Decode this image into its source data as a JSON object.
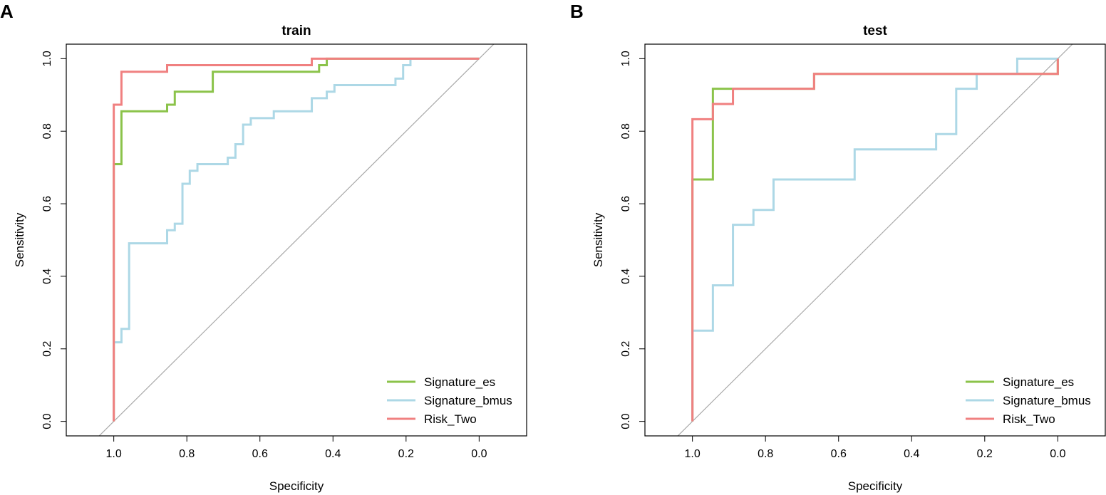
{
  "chart_data": [
    {
      "type": "line",
      "panel_label": "A",
      "title": "train",
      "xlabel": "Specificity",
      "ylabel": "Sensitivity",
      "xlim": [
        1.13,
        -0.13
      ],
      "ylim": [
        -0.04,
        1.04
      ],
      "x_reversed": true,
      "x_ticks": [
        1.0,
        0.8,
        0.6,
        0.4,
        0.2,
        0.0
      ],
      "x_tick_labels": [
        "1.0",
        "0.8",
        "0.6",
        "0.4",
        "0.2",
        "0.0"
      ],
      "y_ticks": [
        0.0,
        0.2,
        0.4,
        0.6,
        0.8,
        1.0
      ],
      "y_tick_labels": [
        "0.0",
        "0.2",
        "0.4",
        "0.6",
        "0.8",
        "1.0"
      ],
      "diagonal": {
        "color": "#A9A9A9",
        "description": "reference line"
      },
      "legend": {
        "position": "bottom-right",
        "entries": [
          "Signature_es",
          "Signature_bmus",
          "Risk_Two"
        ]
      },
      "series": [
        {
          "name": "Signature_es",
          "color": "#8BC34A",
          "points": [
            [
              1.0,
              0.0
            ],
            [
              1.0,
              0.709
            ],
            [
              0.979,
              0.709
            ],
            [
              0.979,
              0.855
            ],
            [
              0.854,
              0.855
            ],
            [
              0.854,
              0.873
            ],
            [
              0.833,
              0.873
            ],
            [
              0.833,
              0.909
            ],
            [
              0.729,
              0.909
            ],
            [
              0.729,
              0.964
            ],
            [
              0.438,
              0.964
            ],
            [
              0.438,
              0.982
            ],
            [
              0.417,
              0.982
            ],
            [
              0.417,
              1.0
            ],
            [
              0.0,
              1.0
            ]
          ]
        },
        {
          "name": "Signature_bmus",
          "color": "#ADD8E6",
          "points": [
            [
              1.0,
              0.0
            ],
            [
              1.0,
              0.218
            ],
            [
              0.979,
              0.218
            ],
            [
              0.979,
              0.255
            ],
            [
              0.958,
              0.255
            ],
            [
              0.958,
              0.491
            ],
            [
              0.854,
              0.491
            ],
            [
              0.854,
              0.527
            ],
            [
              0.833,
              0.527
            ],
            [
              0.833,
              0.545
            ],
            [
              0.812,
              0.545
            ],
            [
              0.812,
              0.655
            ],
            [
              0.792,
              0.655
            ],
            [
              0.792,
              0.691
            ],
            [
              0.771,
              0.691
            ],
            [
              0.771,
              0.709
            ],
            [
              0.688,
              0.709
            ],
            [
              0.688,
              0.727
            ],
            [
              0.667,
              0.727
            ],
            [
              0.667,
              0.764
            ],
            [
              0.646,
              0.764
            ],
            [
              0.646,
              0.818
            ],
            [
              0.625,
              0.818
            ],
            [
              0.625,
              0.836
            ],
            [
              0.562,
              0.836
            ],
            [
              0.562,
              0.855
            ],
            [
              0.458,
              0.855
            ],
            [
              0.458,
              0.891
            ],
            [
              0.417,
              0.891
            ],
            [
              0.417,
              0.909
            ],
            [
              0.396,
              0.909
            ],
            [
              0.396,
              0.927
            ],
            [
              0.229,
              0.927
            ],
            [
              0.229,
              0.945
            ],
            [
              0.208,
              0.945
            ],
            [
              0.208,
              0.982
            ],
            [
              0.188,
              0.982
            ],
            [
              0.188,
              1.0
            ],
            [
              0.0,
              1.0
            ]
          ]
        },
        {
          "name": "Risk_Two",
          "color": "#F08080",
          "points": [
            [
              1.0,
              0.0
            ],
            [
              1.0,
              0.873
            ],
            [
              0.979,
              0.873
            ],
            [
              0.979,
              0.964
            ],
            [
              0.854,
              0.964
            ],
            [
              0.854,
              0.982
            ],
            [
              0.458,
              0.982
            ],
            [
              0.458,
              1.0
            ],
            [
              0.0,
              1.0
            ]
          ]
        }
      ]
    },
    {
      "type": "line",
      "panel_label": "B",
      "title": "test",
      "xlabel": "Specificity",
      "ylabel": "Sensitivity",
      "xlim": [
        1.13,
        -0.13
      ],
      "ylim": [
        -0.04,
        1.04
      ],
      "x_reversed": true,
      "x_ticks": [
        1.0,
        0.8,
        0.6,
        0.4,
        0.2,
        0.0
      ],
      "x_tick_labels": [
        "1.0",
        "0.8",
        "0.6",
        "0.4",
        "0.2",
        "0.0"
      ],
      "y_ticks": [
        0.0,
        0.2,
        0.4,
        0.6,
        0.8,
        1.0
      ],
      "y_tick_labels": [
        "0.0",
        "0.2",
        "0.4",
        "0.6",
        "0.8",
        "1.0"
      ],
      "diagonal": {
        "color": "#A9A9A9",
        "description": "reference line"
      },
      "legend": {
        "position": "bottom-right",
        "entries": [
          "Signature_es",
          "Signature_bmus",
          "Risk_Two"
        ]
      },
      "series": [
        {
          "name": "Signature_es",
          "color": "#8BC34A",
          "points": [
            [
              1.0,
              0.0
            ],
            [
              1.0,
              0.667
            ],
            [
              0.944,
              0.667
            ],
            [
              0.944,
              0.917
            ],
            [
              0.889,
              0.917
            ],
            [
              0.667,
              0.917
            ],
            [
              0.667,
              0.958
            ],
            [
              0.0,
              0.958
            ],
            [
              0.0,
              1.0
            ]
          ]
        },
        {
          "name": "Signature_bmus",
          "color": "#ADD8E6",
          "points": [
            [
              1.0,
              0.0
            ],
            [
              1.0,
              0.25
            ],
            [
              0.944,
              0.25
            ],
            [
              0.944,
              0.375
            ],
            [
              0.889,
              0.375
            ],
            [
              0.889,
              0.542
            ],
            [
              0.833,
              0.542
            ],
            [
              0.833,
              0.583
            ],
            [
              0.778,
              0.583
            ],
            [
              0.778,
              0.667
            ],
            [
              0.556,
              0.667
            ],
            [
              0.556,
              0.75
            ],
            [
              0.333,
              0.75
            ],
            [
              0.333,
              0.792
            ],
            [
              0.278,
              0.792
            ],
            [
              0.278,
              0.917
            ],
            [
              0.222,
              0.917
            ],
            [
              0.222,
              0.958
            ],
            [
              0.111,
              0.958
            ],
            [
              0.111,
              1.0
            ],
            [
              0.0,
              1.0
            ]
          ]
        },
        {
          "name": "Risk_Two",
          "color": "#F08080",
          "points": [
            [
              1.0,
              0.0
            ],
            [
              1.0,
              0.833
            ],
            [
              0.944,
              0.833
            ],
            [
              0.944,
              0.875
            ],
            [
              0.889,
              0.875
            ],
            [
              0.889,
              0.917
            ],
            [
              0.667,
              0.917
            ],
            [
              0.667,
              0.958
            ],
            [
              0.0,
              0.958
            ],
            [
              0.0,
              1.0
            ]
          ]
        }
      ]
    }
  ]
}
